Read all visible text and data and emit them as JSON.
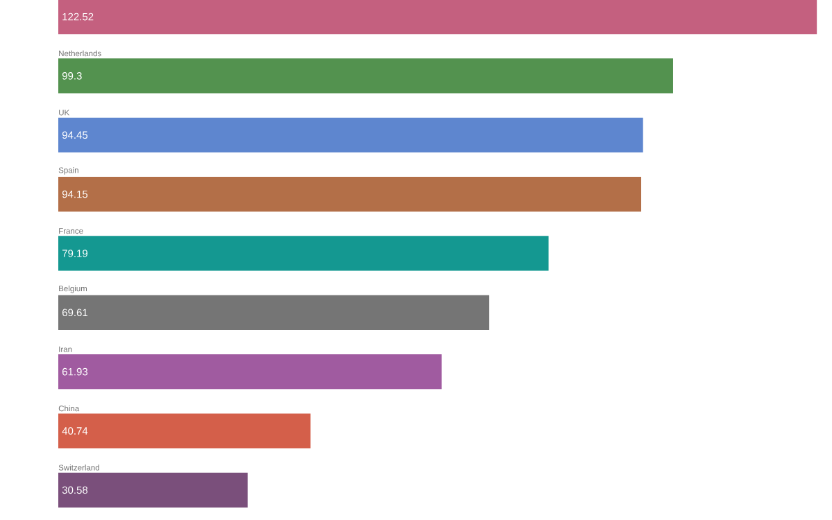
{
  "chart_data": {
    "type": "bar",
    "orientation": "horizontal",
    "data_labels": true,
    "categories": [
      null,
      "Netherlands",
      "UK",
      "Spain",
      "France",
      "Belgium",
      "Iran",
      "China",
      "Switzerland"
    ],
    "values": [
      122.52,
      99.3,
      94.45,
      94.15,
      79.19,
      69.61,
      61.93,
      40.74,
      30.58
    ],
    "colors": [
      "#c4607f",
      "#53924f",
      "#5e86cf",
      "#b36f48",
      "#149891",
      "#757575",
      "#a05ba0",
      "#d45f4a",
      "#7a4f7b"
    ]
  }
}
